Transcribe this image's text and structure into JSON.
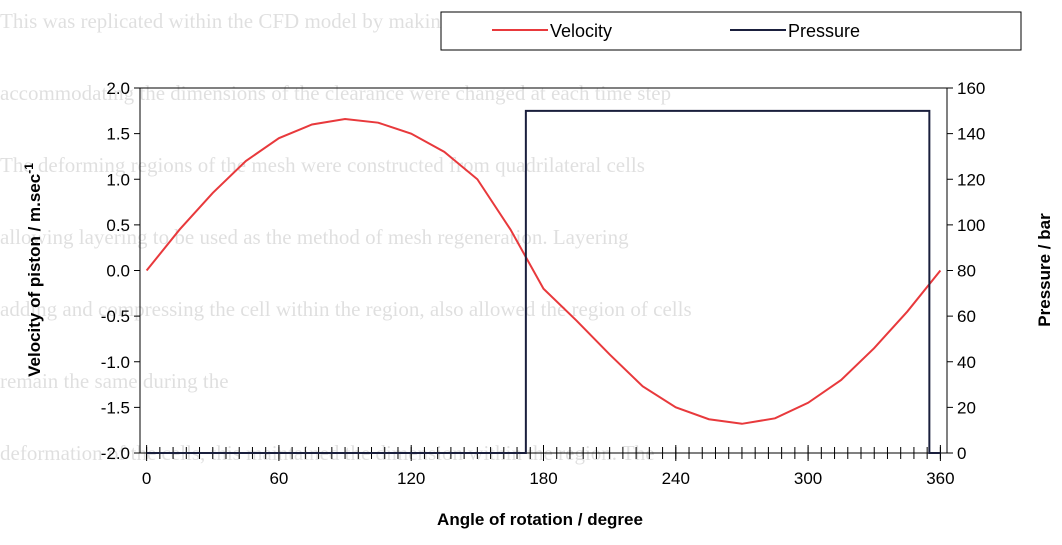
{
  "background_lines": [
    "This was replicated within the CFD model by making part of the clearance deform",
    "accommodating the dimensions of the clearance were changed at each time step",
    "The deforming regions of the mesh were constructed from quadrilateral cells",
    "allowing layering to be used as the method of mesh regeneration. Layering",
    "adding and compressing the cell within the region, also allowed the region of cells",
    "remain the same during the",
    "deformation of the cells, this maintained the dimension within the region. The"
  ],
  "chart_data": {
    "type": "line",
    "xlabel": "Angle of rotation / degree",
    "ylabel": "Velocity of piston / m.sec",
    "ylabel_sup": "-1",
    "y2label": "Pressure / bar",
    "xlim": [
      -3,
      363
    ],
    "xticks": [
      0,
      60,
      120,
      180,
      240,
      300,
      360
    ],
    "x_minor_step": 6,
    "ylim": [
      -2.0,
      2.0
    ],
    "yticks": [
      {
        "value": -2,
        "label": "-2.0"
      },
      {
        "value": -1.5,
        "label": "-1.5"
      },
      {
        "value": -1,
        "label": "-1.0"
      },
      {
        "value": -0.5,
        "label": "-0.5"
      },
      {
        "value": 0,
        "label": "0.0"
      },
      {
        "value": 0.5,
        "label": "0.5"
      },
      {
        "value": 1,
        "label": "1.0"
      },
      {
        "value": 1.5,
        "label": "1.5"
      },
      {
        "value": 2,
        "label": "2.0"
      }
    ],
    "y2lim": [
      0,
      160
    ],
    "y2ticks": [
      0,
      20,
      40,
      60,
      80,
      100,
      120,
      140,
      160
    ],
    "series": [
      {
        "name": "Velocity",
        "color": "#e8393c",
        "x": [
          0,
          15,
          30,
          45,
          60,
          75,
          90,
          105,
          120,
          135,
          150,
          165,
          180,
          195,
          210,
          225,
          240,
          255,
          270,
          285,
          300,
          315,
          330,
          345,
          360
        ],
        "values": [
          0,
          0.45,
          0.85,
          1.2,
          1.45,
          1.6,
          1.66,
          1.62,
          1.5,
          1.3,
          1.0,
          0.45,
          -0.2,
          -0.55,
          -0.92,
          -1.27,
          -1.5,
          -1.63,
          -1.68,
          -1.62,
          -1.45,
          -1.2,
          -0.85,
          -0.45,
          0
        ]
      },
      {
        "name": "Pressure",
        "color": "#1a1f3d",
        "axis": "y2",
        "x": [
          0,
          172,
          172,
          355,
          355,
          360
        ],
        "values": [
          0,
          0,
          150,
          150,
          0,
          0
        ]
      }
    ]
  }
}
